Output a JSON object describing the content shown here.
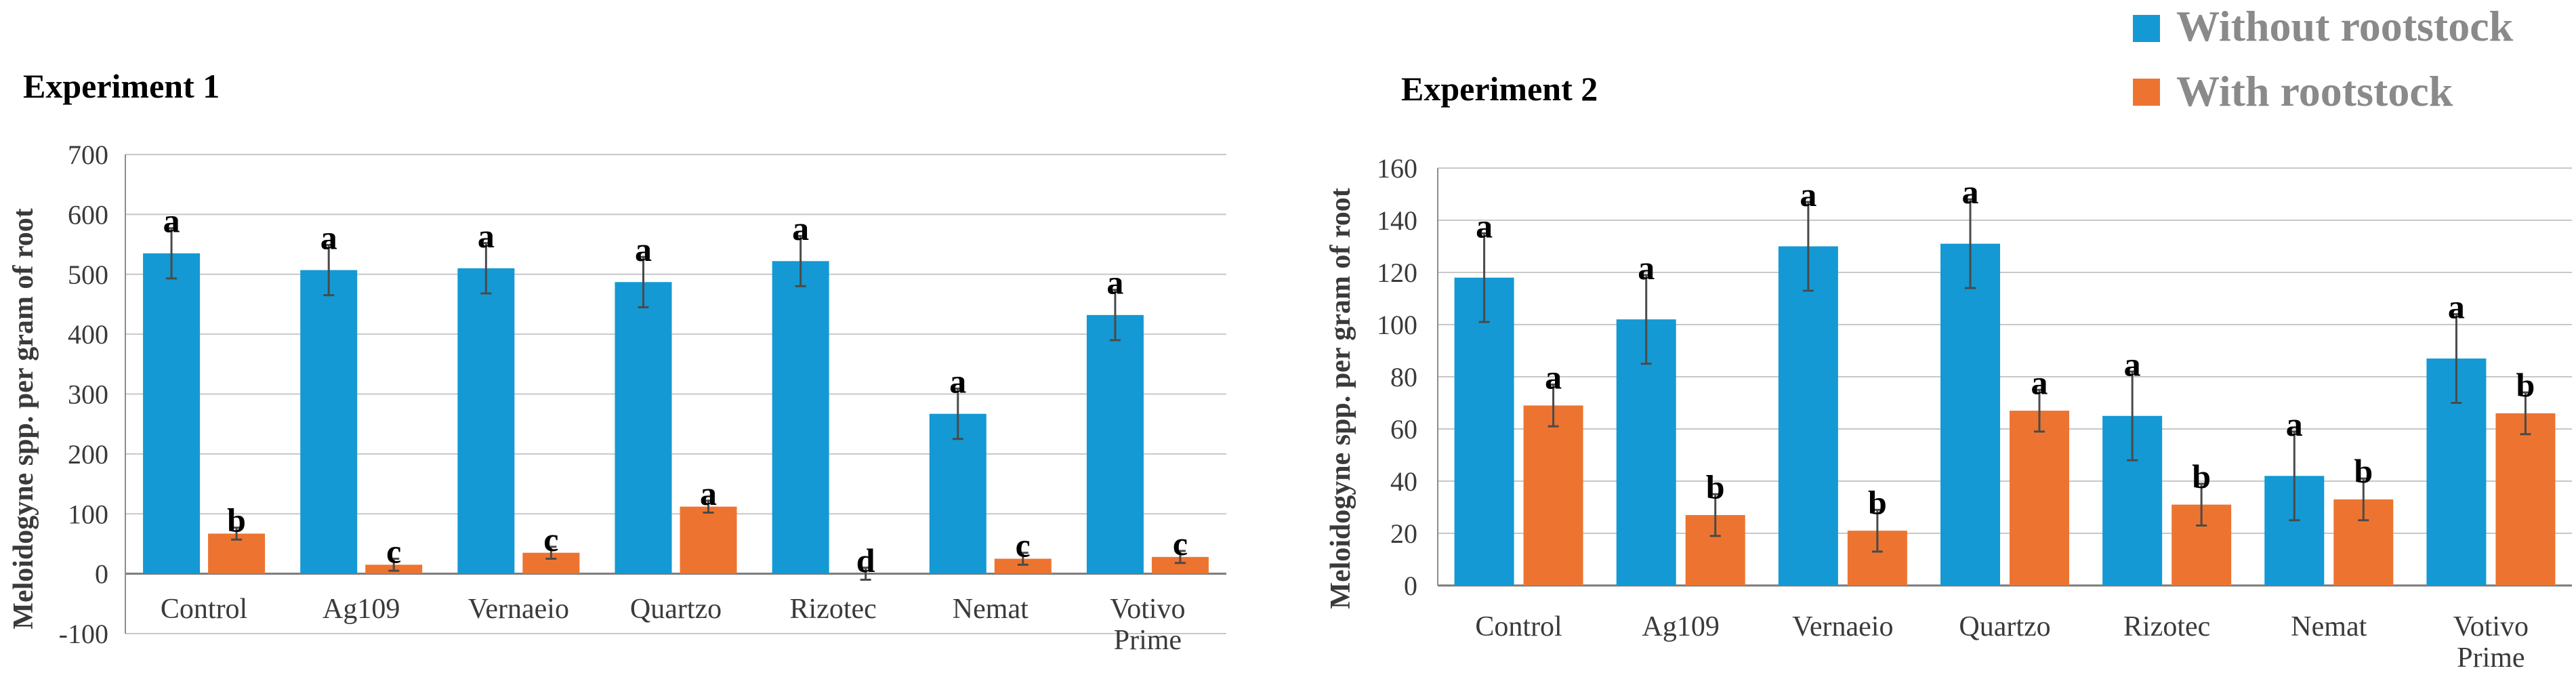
{
  "legend": {
    "items": [
      {
        "label": "Without rootstock",
        "color": "#1499D4"
      },
      {
        "label": "With rootstock",
        "color": "#ED7430"
      }
    ]
  },
  "colors": {
    "without": "#1499D4",
    "with": "#ED7430",
    "grid": "#C8C8C8",
    "axis": "#8C8C8C",
    "text": "#3A3A3A",
    "error_bar": "#4A4A4A"
  },
  "chart_data": [
    {
      "type": "bar",
      "title": "Experiment 1",
      "ylabel": "Meloidogyne spp. per gram of root",
      "xlabel": "",
      "ylim": [
        -100,
        700
      ],
      "yticks": [
        -100,
        0,
        100,
        200,
        300,
        400,
        500,
        600,
        700
      ],
      "categories": [
        [
          "Control"
        ],
        [
          "Ag109"
        ],
        [
          "Vernaeio"
        ],
        [
          "Quartzo"
        ],
        [
          "Rizotec"
        ],
        [
          "Nemat"
        ],
        [
          "Votivo",
          "Prime"
        ]
      ],
      "series": [
        {
          "name": "Without rootstock",
          "values": [
            535,
            507,
            510,
            487,
            522,
            267,
            432
          ],
          "errors": [
            42,
            42,
            42,
            42,
            42,
            42,
            42
          ],
          "letters": [
            "a",
            "a",
            "a",
            "a",
            "a",
            "a",
            "a"
          ]
        },
        {
          "name": "With rootstock",
          "values": [
            67,
            15,
            35,
            112,
            0,
            25,
            28
          ],
          "errors": [
            10,
            10,
            10,
            10,
            10,
            10,
            10
          ],
          "letters": [
            "b",
            "c",
            "c",
            "a",
            "d",
            "c",
            "c"
          ]
        }
      ]
    },
    {
      "type": "bar",
      "title": "Experiment 2",
      "ylabel": "Meloidogyne spp. per gram of root",
      "xlabel": "",
      "ylim": [
        0,
        160
      ],
      "yticks": [
        0,
        20,
        40,
        60,
        80,
        100,
        120,
        140,
        160
      ],
      "categories": [
        [
          "Control"
        ],
        [
          "Ag109"
        ],
        [
          "Vernaeio"
        ],
        [
          "Quartzo"
        ],
        [
          "Rizotec"
        ],
        [
          "Nemat"
        ],
        [
          "Votivo",
          "Prime"
        ]
      ],
      "series": [
        {
          "name": "Without rootstock",
          "values": [
            118,
            102,
            130,
            131,
            65,
            42,
            87
          ],
          "errors": [
            17,
            17,
            17,
            17,
            17,
            17,
            17
          ],
          "letters": [
            "a",
            "a",
            "a",
            "a",
            "a",
            "a",
            "a"
          ]
        },
        {
          "name": "With rootstock",
          "values": [
            69,
            27,
            21,
            67,
            31,
            33,
            66
          ],
          "errors": [
            8,
            8,
            8,
            8,
            8,
            8,
            8
          ],
          "letters": [
            "a",
            "b",
            "b",
            "a",
            "b",
            "b",
            "b"
          ]
        }
      ]
    }
  ]
}
